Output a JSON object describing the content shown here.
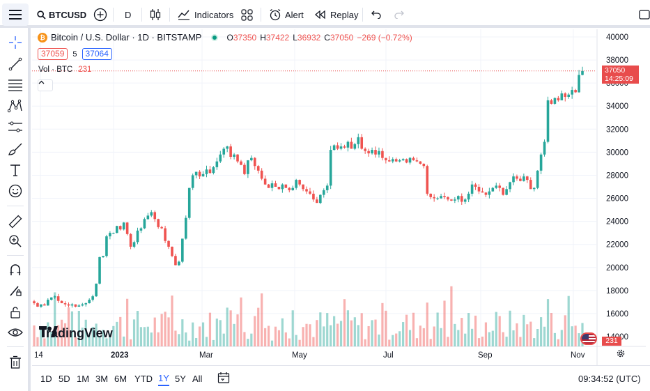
{
  "toolbar": {
    "symbol": "BTCUSD",
    "interval": "D",
    "indicators": "Indicators",
    "alert": "Alert",
    "replay": "Replay"
  },
  "legend": {
    "title": "Bitcoin / U.S. Dollar · 1D · BITSTAMP",
    "o_label": "O",
    "o_value": "37350",
    "h_label": "H",
    "h_value": "37422",
    "l_label": "L",
    "l_value": "36932",
    "c_label": "C",
    "c_value": "37050",
    "change": "−269 (−0.72%)",
    "bid": "37059",
    "spread": "5",
    "ask": "37064",
    "vol_label": "Vol · BTC",
    "vol_value": "231"
  },
  "price_tag": {
    "price": "37050",
    "countdown": "14:25:09",
    "vol": "231"
  },
  "bottom": {
    "ranges": [
      "1D",
      "5D",
      "1M",
      "3M",
      "6M",
      "YTD",
      "1Y",
      "5Y",
      "All"
    ],
    "active_range": "1Y",
    "time": "09:34:52 (UTC)"
  },
  "logo_text": "TradingView",
  "colors": {
    "up": "#26a69a",
    "down": "#ef5350",
    "accent": "#2962ff",
    "price_line": "#e84c4c"
  },
  "chart_data": {
    "type": "candlestick",
    "y_ticks": [
      14000,
      16000,
      18000,
      20000,
      22000,
      24000,
      26000,
      28000,
      30000,
      32000,
      34000,
      36000,
      38000,
      40000
    ],
    "ylim": [
      13000,
      40000
    ],
    "x_ticks": [
      "14",
      "2023",
      "Mar",
      "May",
      "Jul",
      "Sep",
      "Nov"
    ],
    "last_close": 37050,
    "closes": [
      16900,
      16600,
      16800,
      16700,
      17200,
      17400,
      17500,
      17100,
      16900,
      16800,
      16700,
      16800,
      16600,
      16700,
      16800,
      16900,
      17200,
      17500,
      18600,
      20900,
      21000,
      22700,
      23000,
      23000,
      23600,
      23300,
      23900,
      22900,
      21800,
      22200,
      23200,
      23400,
      24200,
      24500,
      24800,
      24200,
      23500,
      23400,
      22300,
      21800,
      21000,
      20200,
      20500,
      22500,
      24300,
      26900,
      28000,
      28300,
      27900,
      28100,
      28500,
      28200,
      28700,
      29200,
      29800,
      30300,
      30500,
      29600,
      29800,
      29200,
      28900,
      28100,
      29300,
      29500,
      28800,
      28400,
      27700,
      27200,
      26900,
      27300,
      27000,
      26800,
      27200,
      26900,
      26700,
      26900,
      27600,
      27200,
      26800,
      26600,
      26400,
      25900,
      25600,
      26300,
      26700,
      27100,
      30200,
      30600,
      30300,
      30500,
      30400,
      30900,
      30300,
      30700,
      31300,
      30300,
      30100,
      29900,
      30200,
      29800,
      30100,
      29500,
      29300,
      29200,
      29400,
      29200,
      29300,
      29400,
      29100,
      29500,
      29300,
      29200,
      29000,
      28800,
      26400,
      26100,
      26000,
      26000,
      26200,
      26100,
      25900,
      25800,
      25900,
      26200,
      25700,
      25900,
      26400,
      27200,
      27000,
      26600,
      26500,
      26300,
      26600,
      26900,
      27100,
      26900,
      26300,
      26800,
      27400,
      27900,
      27700,
      27500,
      27900,
      27600,
      26800,
      26900,
      28400,
      29800,
      30900,
      34500,
      34200,
      34700,
      34500,
      35100,
      34800,
      35000,
      35400,
      35200,
      36700,
      37050
    ]
  }
}
